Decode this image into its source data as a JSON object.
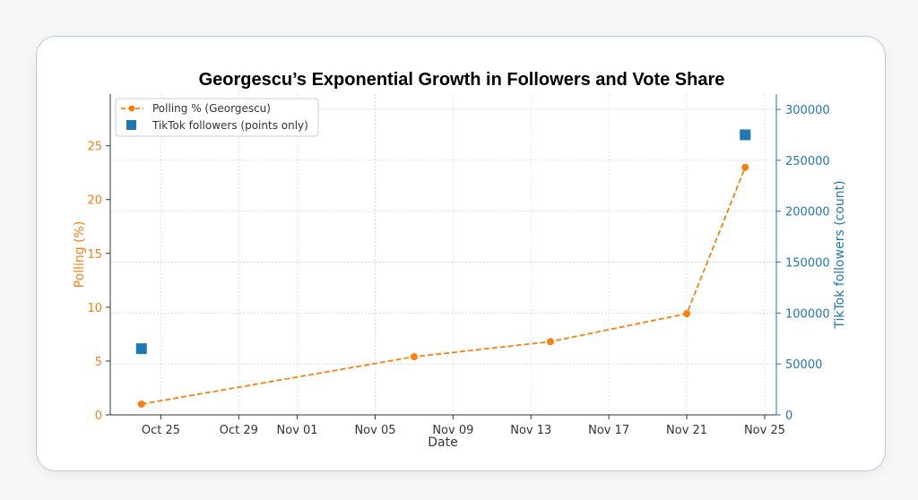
{
  "chart_data": {
    "type": "line",
    "title": "Georgescu’s Exponential Growth in Followers and Vote Share",
    "xlabel": "Date",
    "ylabel": "Polling (%)",
    "y2label": "TikTok followers (count)",
    "x_tick_labels": [
      "Oct 25",
      "Oct 29",
      "Nov 01",
      "Nov 05",
      "Nov 09",
      "Nov 13",
      "Nov 17",
      "Nov 21",
      "Nov 25"
    ],
    "x_tick_days": [
      1,
      5,
      8,
      12,
      16,
      20,
      24,
      28,
      32
    ],
    "xlim_days": [
      -1.6,
      32.6
    ],
    "x_day0": "Oct 24",
    "ylim": [
      0,
      29.8
    ],
    "y_ticks": [
      0,
      5,
      10,
      15,
      20,
      25
    ],
    "y2lim": [
      0,
      315000
    ],
    "y2_ticks": [
      0,
      50000,
      100000,
      150000,
      200000,
      250000,
      300000
    ],
    "grid": true,
    "legend_position": "top-left",
    "series": [
      {
        "name": "Polling % (Georgescu)",
        "axis": "left",
        "style": "dashed-line-markers",
        "color": "#ff7f0e",
        "x_days": [
          0,
          14,
          21,
          28,
          31
        ],
        "x": [
          "Oct 24",
          "Nov 07",
          "Nov 14",
          "Nov 21",
          "Nov 24"
        ],
        "values": [
          1.0,
          5.4,
          6.8,
          9.4,
          23.0
        ]
      },
      {
        "name": "TikTok followers (points only)",
        "axis": "right",
        "style": "square-markers",
        "color": "#1f77b4",
        "x_days": [
          0,
          31
        ],
        "x": [
          "Oct 24",
          "Nov 24"
        ],
        "values": [
          65000,
          275000
        ]
      }
    ]
  }
}
